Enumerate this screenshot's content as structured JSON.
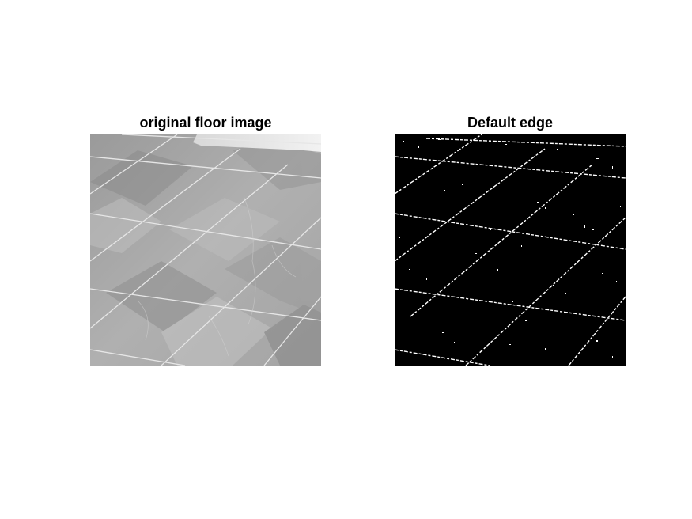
{
  "figure": {
    "subplots": [
      {
        "title": "original floor image",
        "content": "grayscale photo",
        "colors": {
          "tile_light": "#b3b3b3",
          "tile_dark": "#8f8f8f",
          "grout": "#e8e8e8"
        }
      },
      {
        "title": "Default edge",
        "content": "binary edge map",
        "colors": {
          "background": "#000000",
          "edge": "#ffffff"
        }
      }
    ]
  }
}
